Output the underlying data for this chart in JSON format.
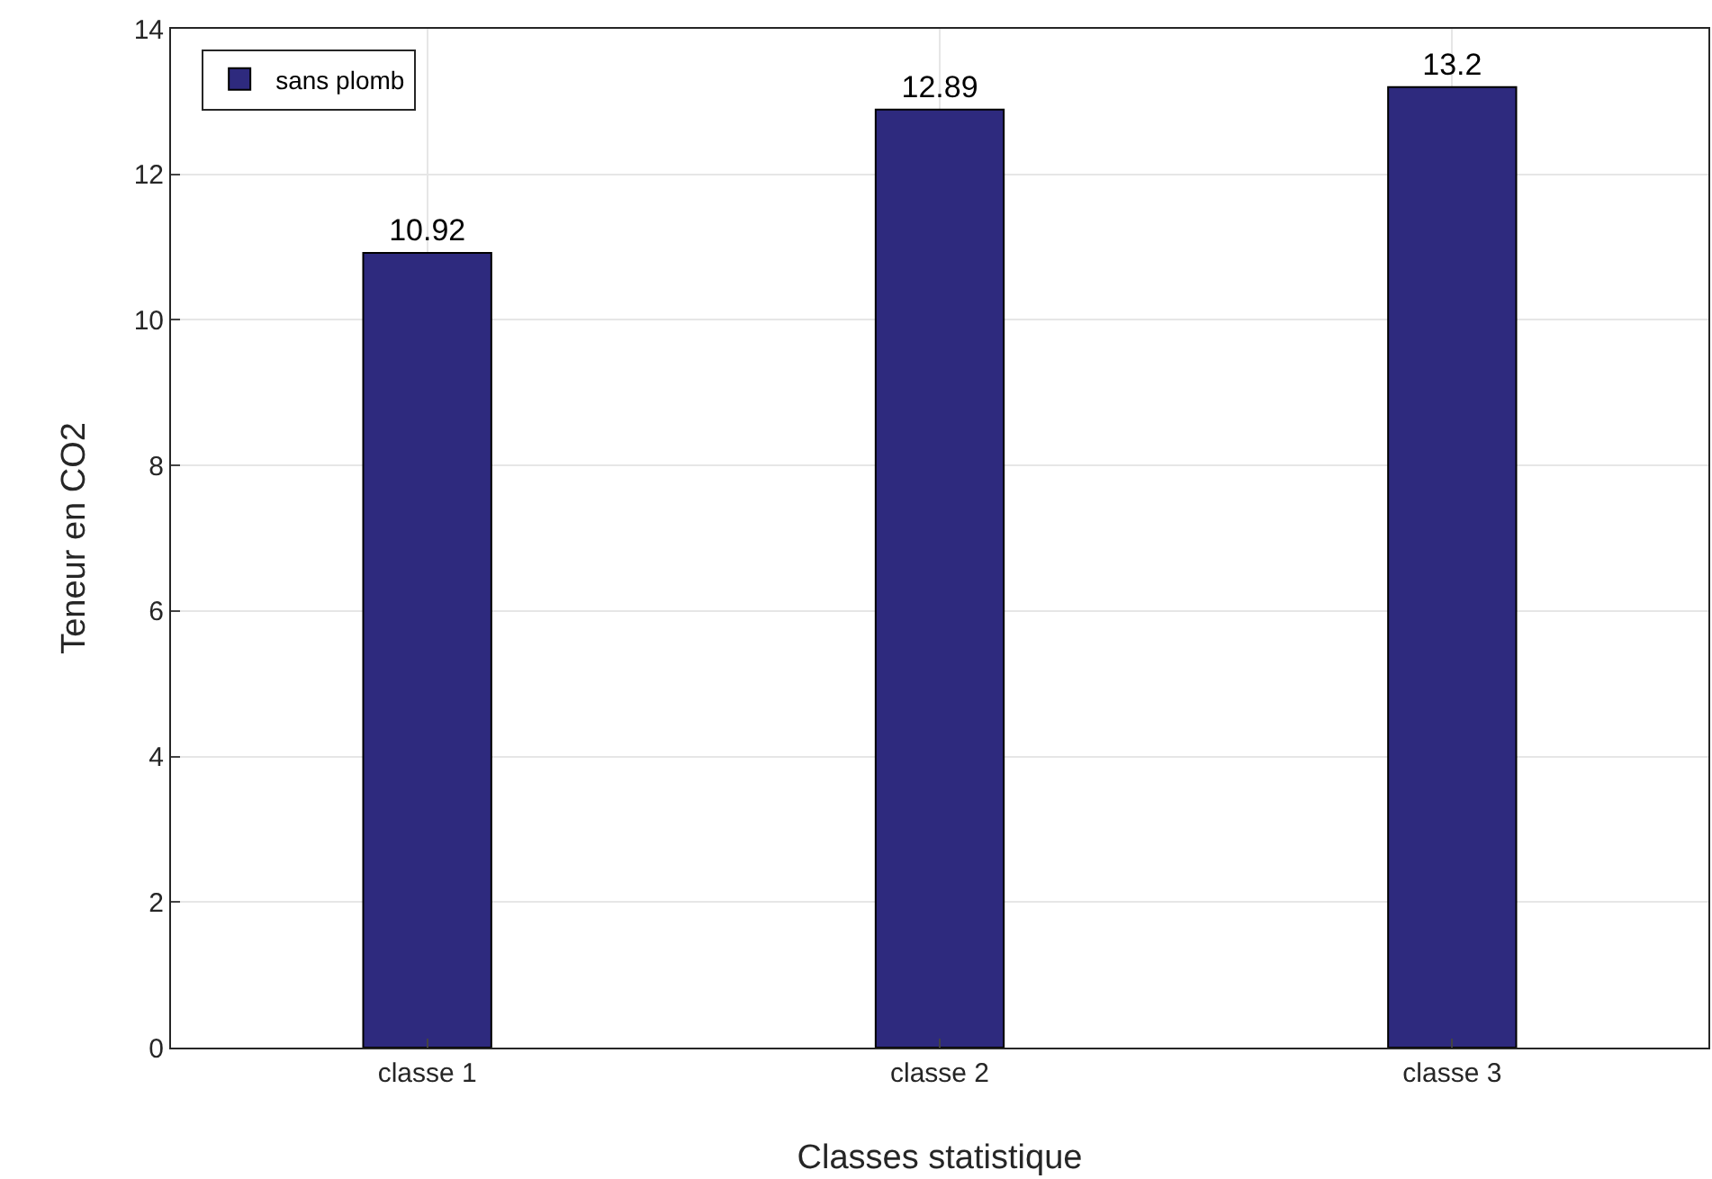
{
  "chart_data": {
    "type": "bar",
    "xlabel": "Classes statistique",
    "ylabel": "Teneur en CO2",
    "categories": [
      "classe 1",
      "classe 2",
      "classe 3"
    ],
    "series": [
      {
        "name": "sans plomb",
        "color": "#2e2a7e",
        "values": [
          10.92,
          12.89,
          13.2
        ]
      }
    ],
    "ylim": [
      0,
      14
    ],
    "yticks": [
      0,
      2,
      4,
      6,
      8,
      10,
      12,
      14
    ],
    "grid": true,
    "legend": "top left",
    "data_labels": true
  }
}
